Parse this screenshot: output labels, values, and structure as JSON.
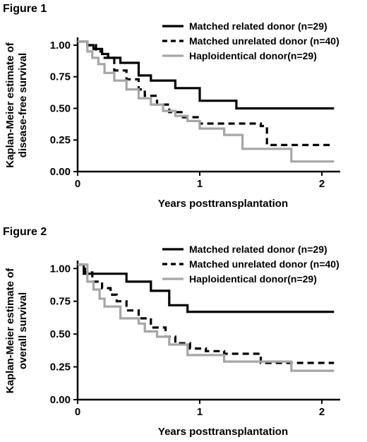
{
  "chart_data": [
    {
      "type": "line",
      "title": "Figure 1",
      "xlabel": "Years posttransplantation",
      "ylabel": "Kaplan-Meier estimate of disease-free survival",
      "xlim": [
        0,
        2.15
      ],
      "ylim": [
        0,
        1.05
      ],
      "xticks": [
        0,
        1,
        2
      ],
      "yticks": [
        0.0,
        0.25,
        0.5,
        0.75,
        1.0
      ],
      "xtick_labels": [
        "0",
        "1",
        "2"
      ],
      "ytick_labels": [
        "0.00",
        "0.25",
        "0.50",
        "0.75",
        "1.00"
      ],
      "step": true,
      "legend_position": "top-right",
      "series": [
        {
          "name": "Matched related donor (n=29)",
          "color": "#000000",
          "dash": "solid",
          "x": [
            0,
            0.08,
            0.13,
            0.2,
            0.25,
            0.35,
            0.5,
            0.6,
            0.8,
            1.0,
            1.3,
            2.1
          ],
          "y": [
            1.03,
            1.0,
            0.97,
            0.93,
            0.9,
            0.86,
            0.76,
            0.72,
            0.66,
            0.56,
            0.5,
            0.5
          ]
        },
        {
          "name": "Matched unrelated donor (n=40)",
          "color": "#000000",
          "dash": "dashed",
          "x": [
            0,
            0.08,
            0.15,
            0.2,
            0.3,
            0.4,
            0.5,
            0.55,
            0.65,
            0.75,
            0.85,
            1.0,
            1.5,
            1.55,
            2.1
          ],
          "y": [
            1.03,
            1.0,
            0.95,
            0.9,
            0.8,
            0.73,
            0.65,
            0.6,
            0.53,
            0.47,
            0.43,
            0.38,
            0.36,
            0.21,
            0.21
          ]
        },
        {
          "name": "Haploidentical donor(n=29)",
          "color": "#a6a6a6",
          "dash": "solid",
          "x": [
            0,
            0.08,
            0.12,
            0.17,
            0.22,
            0.3,
            0.4,
            0.5,
            0.6,
            0.7,
            0.8,
            0.9,
            1.0,
            1.2,
            1.35,
            1.75,
            2.1
          ],
          "y": [
            1.03,
            0.95,
            0.9,
            0.85,
            0.78,
            0.72,
            0.65,
            0.58,
            0.53,
            0.48,
            0.44,
            0.4,
            0.34,
            0.29,
            0.18,
            0.08,
            0.08
          ]
        }
      ]
    },
    {
      "type": "line",
      "title": "Figure 2",
      "xlabel": "Years posttransplantation",
      "ylabel": "Kaplan-Meier estimate of overall survival",
      "xlim": [
        0,
        2.15
      ],
      "ylim": [
        0,
        1.05
      ],
      "xticks": [
        0,
        1,
        2
      ],
      "yticks": [
        0.0,
        0.25,
        0.5,
        0.75,
        1.0
      ],
      "xtick_labels": [
        "0",
        "1",
        "2"
      ],
      "ytick_labels": [
        "0.00",
        "0.25",
        "0.50",
        "0.75",
        "1.00"
      ],
      "step": true,
      "legend_position": "top-right",
      "series": [
        {
          "name": "Matched related donor (n=29)",
          "color": "#000000",
          "dash": "solid",
          "x": [
            0,
            0.05,
            0.4,
            0.6,
            0.75,
            0.9,
            2.1
          ],
          "y": [
            1.03,
            0.96,
            0.9,
            0.83,
            0.72,
            0.67,
            0.67
          ]
        },
        {
          "name": "Matched unrelated donor (n=40)",
          "color": "#000000",
          "dash": "dashed",
          "x": [
            0,
            0.06,
            0.12,
            0.2,
            0.27,
            0.32,
            0.4,
            0.5,
            0.6,
            0.72,
            0.8,
            0.92,
            1.05,
            1.2,
            1.5,
            2.1
          ],
          "y": [
            1.03,
            0.97,
            0.9,
            0.85,
            0.8,
            0.75,
            0.68,
            0.62,
            0.55,
            0.48,
            0.43,
            0.39,
            0.37,
            0.35,
            0.28,
            0.28
          ]
        },
        {
          "name": "Haploidentical donor(n=29)",
          "color": "#a6a6a6",
          "dash": "solid",
          "x": [
            0,
            0.08,
            0.13,
            0.18,
            0.22,
            0.35,
            0.5,
            0.55,
            0.65,
            0.75,
            0.9,
            1.0,
            1.2,
            1.75,
            2.1
          ],
          "y": [
            1.03,
            0.9,
            0.84,
            0.77,
            0.71,
            0.62,
            0.58,
            0.52,
            0.48,
            0.42,
            0.34,
            0.34,
            0.29,
            0.22,
            0.22
          ]
        }
      ]
    }
  ]
}
